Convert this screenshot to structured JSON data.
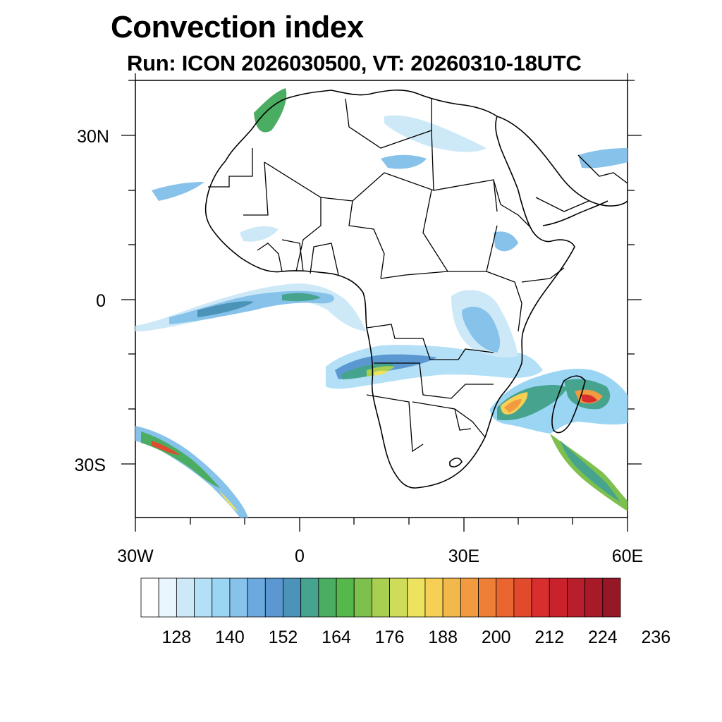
{
  "title": "Convection index",
  "subtitle": "Run: ICON 2026030500,  VT: 20260310-18UTC",
  "axes": {
    "lat_labels": [
      "30N",
      "0",
      "30S"
    ],
    "lon_labels": [
      "30W",
      "0",
      "30E",
      "60E"
    ]
  },
  "colorbar": {
    "labels": [
      "128",
      "140",
      "152",
      "164",
      "176",
      "188",
      "200",
      "212",
      "224",
      "236"
    ],
    "colors": [
      "#ffffff",
      "#eaf6fd",
      "#cde9f8",
      "#b3e0f6",
      "#9ad6f4",
      "#86c2ea",
      "#6ca9de",
      "#5b98d2",
      "#4b93b9",
      "#46a38e",
      "#4aad62",
      "#56b74a",
      "#7ec04d",
      "#a8cf4f",
      "#cfdc5a",
      "#ede35e",
      "#f6cf55",
      "#f3b84c",
      "#f19a40",
      "#ee7f36",
      "#ea6530",
      "#e14a2d",
      "#d82f2e",
      "#c9222d",
      "#b81e2b",
      "#a81a28",
      "#961826"
    ]
  },
  "map_features": {
    "coastline": "coastline-icon",
    "borders": "country-borders-icon"
  }
}
